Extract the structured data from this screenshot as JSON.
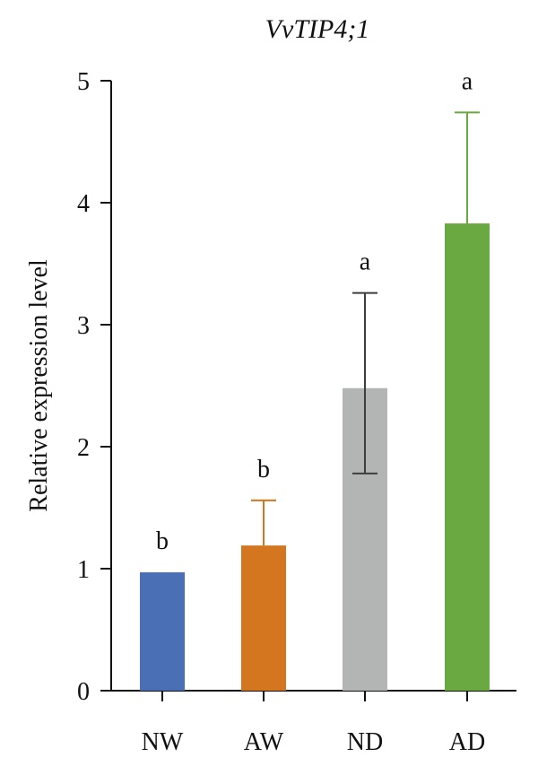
{
  "chart_data": {
    "type": "bar",
    "title": "VvTIP4;1",
    "xlabel": "",
    "ylabel": "Relative expression level",
    "ylim": [
      0,
      5
    ],
    "yticks": [
      0,
      1,
      2,
      3,
      4,
      5
    ],
    "grid": false,
    "categories": [
      "NW",
      "AW",
      "ND",
      "AD"
    ],
    "values": [
      0.97,
      1.19,
      2.48,
      3.83
    ],
    "error_upper": [
      0.97,
      1.56,
      3.26,
      4.74
    ],
    "error_lower": [
      0.97,
      1.19,
      1.78,
      3.0
    ],
    "significance": [
      "b",
      "b",
      "a",
      "a"
    ],
    "colors": [
      "#4a6fb5",
      "#d47620",
      "#b3b5b4",
      "#6aa842"
    ]
  }
}
